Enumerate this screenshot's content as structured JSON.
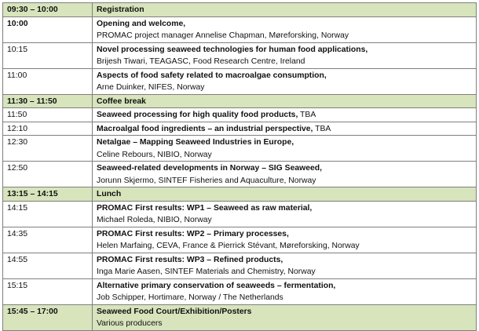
{
  "rows": [
    {
      "time": "09:30 – 10:00",
      "title": "Registration",
      "sub": "",
      "highlight": true
    },
    {
      "time": "10:00",
      "title": "Opening and welcome,",
      "sub": "PROMAC project manager Annelise Chapman, Møreforsking, Norway",
      "highlight": false
    },
    {
      "time": "10:15",
      "title": "Novel processing seaweed technologies for human food applications,",
      "sub": "Brijesh Tiwari, TEAGASC, Food Research Centre, Ireland",
      "highlight": false
    },
    {
      "time": "11:00",
      "title": "Aspects of food safety related to macroalgae consumption,",
      "sub": "Arne Duinker, NIFES, Norway",
      "highlight": false
    },
    {
      "time": "11:30 – 11:50",
      "title": "Coffee break",
      "sub": "",
      "highlight": true
    },
    {
      "time": "11:50",
      "title": "Seaweed processing for high quality food products,",
      "title_suffix": " TBA",
      "sub": "",
      "highlight": false
    },
    {
      "time": "12:10",
      "title": "Macroalgal food ingredients – an industrial perspective,",
      "title_suffix": " TBA",
      "sub": "",
      "highlight": false
    },
    {
      "time": "12:30",
      "title": "Netalgae – Mapping Seaweed Industries in Europe,",
      "sub": "Celine Rebours, NIBIO, Norway",
      "highlight": false
    },
    {
      "time": "12:50",
      "title": "Seaweed-related developments in Norway – SIG Seaweed,",
      "sub": "Jorunn Skjermo, SINTEF Fisheries and Aquaculture, Norway",
      "highlight": false
    },
    {
      "time": "13:15 – 14:15",
      "title": "Lunch",
      "sub": "",
      "highlight": true
    },
    {
      "time": "14:15",
      "title": "PROMAC First results: WP1 – Seaweed as raw material,",
      "sub": "Michael Roleda, NIBIO, Norway",
      "highlight": false
    },
    {
      "time": "14:35",
      "title": "PROMAC First results: WP2 – Primary processes,",
      "sub": "Helen Marfaing, CEVA, France & Pierrick Stévant, Møreforsking, Norway",
      "highlight": false
    },
    {
      "time": "14:55",
      "title": "PROMAC First results: WP3 – Refined products,",
      "sub": "Inga Marie Aasen, SINTEF Materials and Chemistry, Norway",
      "highlight": false
    },
    {
      "time": "15:15",
      "title": "Alternative primary conservation of seaweeds – fermentation,",
      "sub": "Job Schipper, Hortimare, Norway / The Netherlands",
      "highlight": false
    },
    {
      "time": "15:45 – 17:00",
      "title": "Seaweed Food Court/Exhibition/Posters",
      "sub": "Various producers",
      "highlight": true
    }
  ]
}
